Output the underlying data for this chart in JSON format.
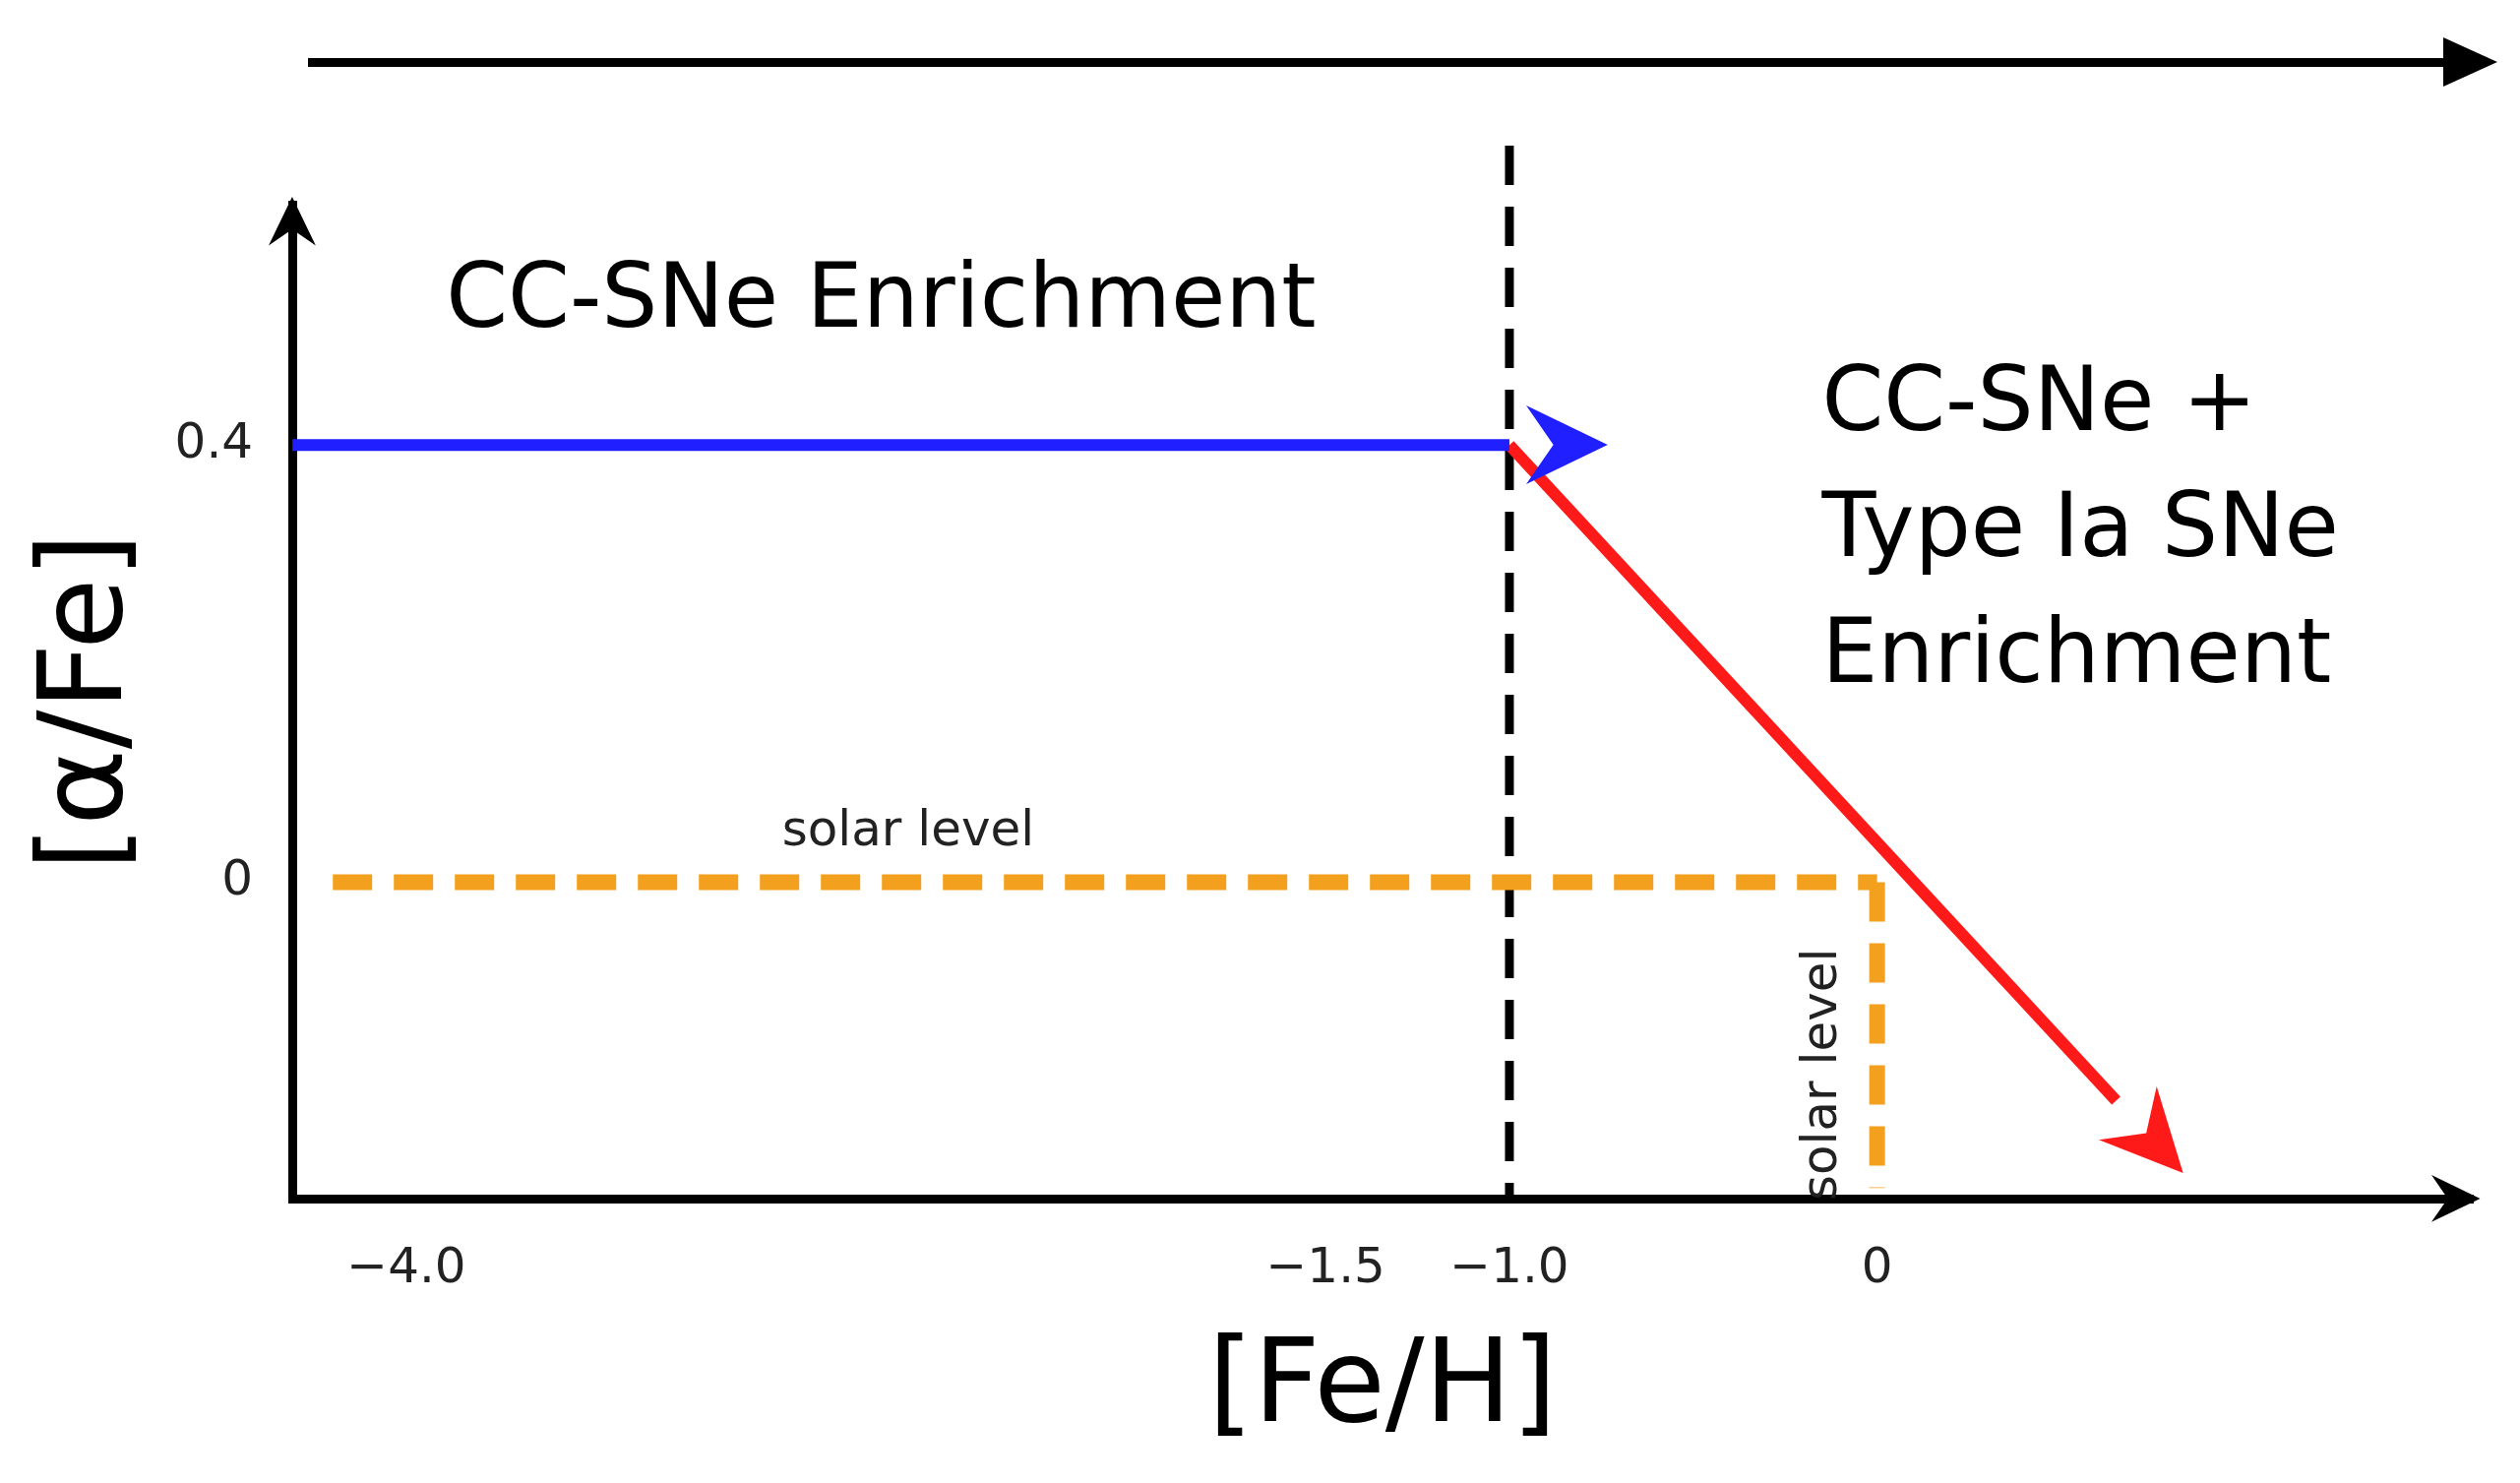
{
  "chart_data": {
    "type": "line",
    "xlabel": "[Fe/H]",
    "ylabel": "[α/Fe]",
    "xlim": [
      -4.31,
      1.62
    ],
    "ylim": [
      -0.29,
      0.62
    ],
    "xticks": [
      {
        "value": -4,
        "label": "−4.0"
      },
      {
        "value": -1.5,
        "label": "−1.5"
      },
      {
        "value": -1,
        "label": "−1.0"
      },
      0
    ],
    "yticks": [
      0,
      0.4
    ],
    "series": [
      {
        "color": "#1f1fff",
        "x": [
          -4.31,
          -1.0
        ],
        "values": [
          0.4,
          0.4
        ]
      },
      {
        "color": "#ff1a1a",
        "x": [
          -1.0,
          0.65
        ],
        "values": [
          0.4,
          -0.2
        ]
      },
      {
        "name": "solar level",
        "color": "#f2a01e",
        "line_style": "dashed",
        "x": [
          -4.2,
          0
        ],
        "values": [
          0,
          0
        ]
      },
      {
        "name": "solar level",
        "color": "#f2a01e",
        "line_style": "dashed",
        "x": [
          0,
          0
        ],
        "values": [
          0,
          -0.28
        ]
      }
    ],
    "ref_lines": [
      {
        "axis": "x",
        "value": -1.0,
        "color": "#000000",
        "line_style": "dashed"
      }
    ],
    "annotations": [
      "CC-SNe Enrichment",
      "CC-SNe +\nType Ia SNe\nEnrichment"
    ],
    "grid": false,
    "legend": false,
    "marker": "none"
  }
}
